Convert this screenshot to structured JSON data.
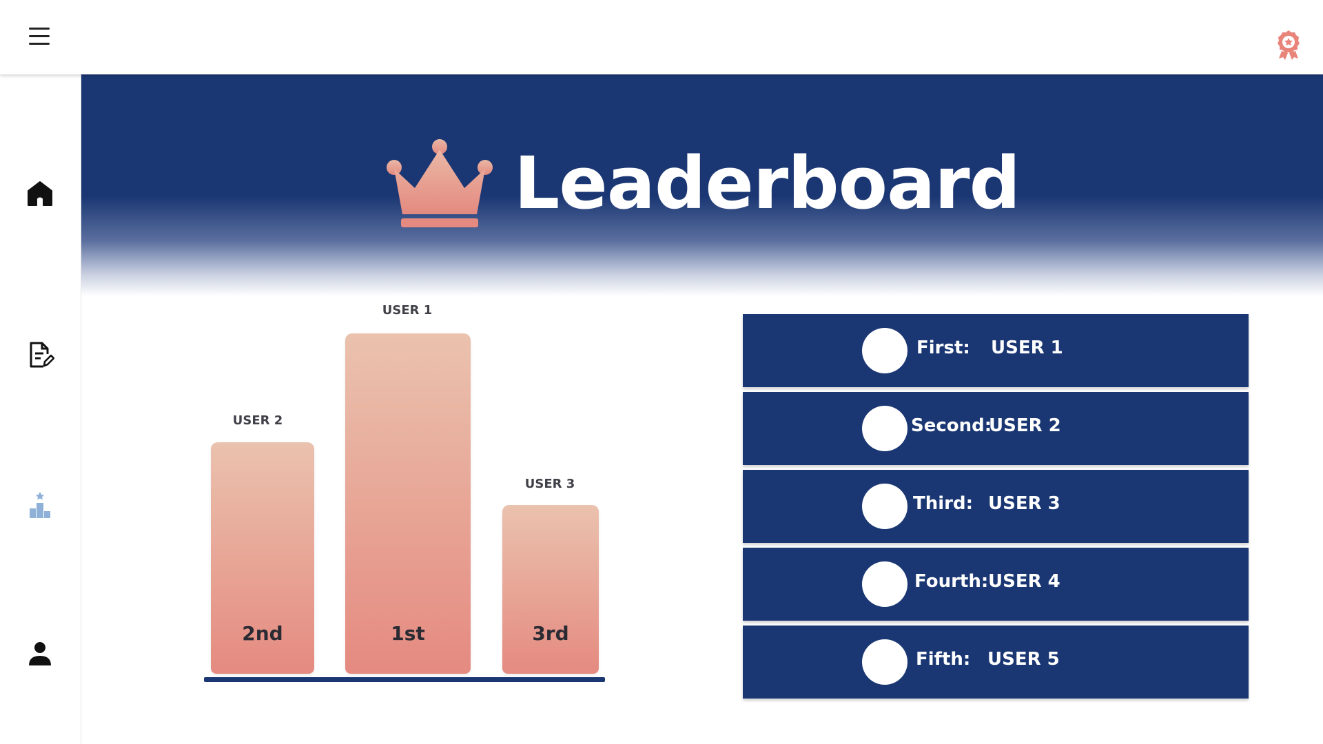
{
  "header": {
    "menu_icon": "hamburger-menu-icon",
    "badge_icon": "award-ribbon-icon",
    "accent_color": "#e8847a"
  },
  "sidebar": {
    "items": [
      {
        "icon": "home-icon"
      },
      {
        "icon": "document-edit-icon"
      },
      {
        "icon": "podium-icon",
        "active": true
      },
      {
        "icon": "user-icon"
      }
    ]
  },
  "hero": {
    "title": "Leaderboard",
    "icon": "crown-icon",
    "background_color": "#1b3773"
  },
  "podium": {
    "places": [
      {
        "user": "USER 2",
        "rank": "2nd",
        "place": 2
      },
      {
        "user": "USER 1",
        "rank": "1st",
        "place": 1
      },
      {
        "user": "USER 3",
        "rank": "3rd",
        "place": 3
      }
    ]
  },
  "ranking": {
    "rows": [
      {
        "label": "First:",
        "user": "USER 1"
      },
      {
        "label": "Second:",
        "user": "USER 2"
      },
      {
        "label": "Third:",
        "user": "USER 3"
      },
      {
        "label": "Fourth:",
        "user": "USER 4"
      },
      {
        "label": "Fifth:",
        "user": "USER 5"
      }
    ]
  }
}
